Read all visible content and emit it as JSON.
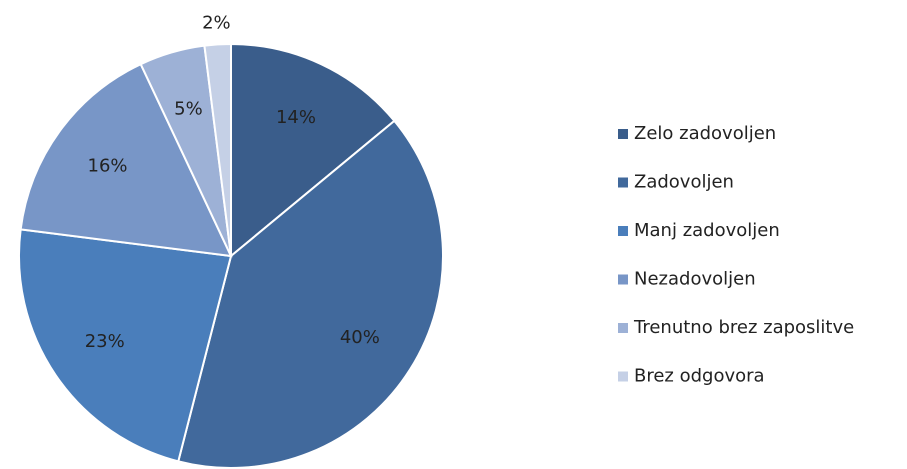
{
  "chart_data": {
    "type": "pie",
    "categories": [
      "Zelo zadovoljen",
      "Zadovoljen",
      "Manj zadovoljen",
      "Nezadovoljen",
      "Trenutno brez zaposlitve",
      "Brez odgovora"
    ],
    "values": [
      14,
      40,
      23,
      16,
      5,
      2
    ],
    "value_labels": [
      "14%",
      "40%",
      "23%",
      "16%",
      "5%",
      "2%"
    ],
    "colors": [
      "#3a5d8b",
      "#41699c",
      "#4a7ebb",
      "#7896c7",
      "#9db1d6",
      "#c5d0e6"
    ],
    "legend": "right"
  }
}
